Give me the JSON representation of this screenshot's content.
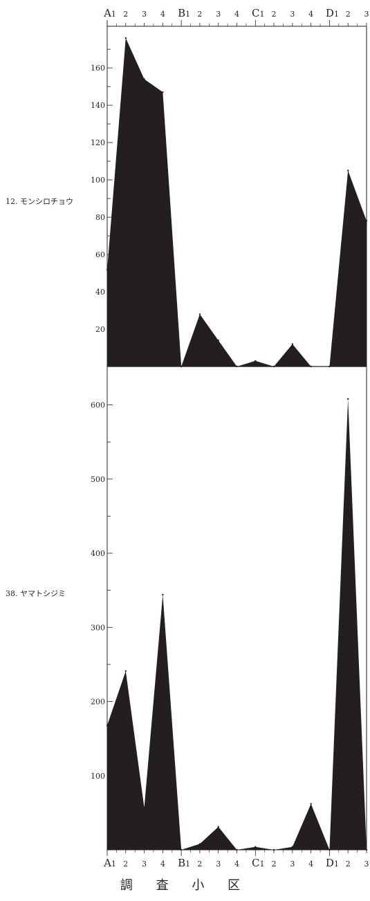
{
  "chart_data": {
    "type": "area",
    "xlabel": "調 査 小 区",
    "top_tick_labels": [
      "A1",
      "2",
      "3",
      "4",
      "B1",
      "2",
      "3",
      "4",
      "C1",
      "2",
      "3",
      "4",
      "D1",
      "2",
      "3"
    ],
    "bottom_tick_labels": [
      "A1",
      "2",
      "3",
      "4",
      "B1",
      "2",
      "3",
      "4",
      "C1",
      "2",
      "3",
      "4",
      "D1",
      "2",
      "3"
    ],
    "x": [
      "A1",
      "A2",
      "A3",
      "A4",
      "B1",
      "B2",
      "B3",
      "B4",
      "C1",
      "C2",
      "C3",
      "C4",
      "D1",
      "D2",
      "D3"
    ],
    "fill_color": "#231f20",
    "grid": false,
    "panels": [
      {
        "label": "12. モンシロチョウ",
        "values": [
          52,
          176,
          154,
          147,
          0,
          28,
          14,
          0,
          3,
          0,
          12,
          0,
          0,
          105,
          78
        ],
        "ylim": [
          0,
          180
        ],
        "yticks": [
          20,
          40,
          60,
          80,
          100,
          120,
          140,
          160
        ]
      },
      {
        "label": "38. ヤマトシジミ",
        "values": [
          168,
          241,
          57,
          344,
          0,
          8,
          31,
          0,
          4,
          0,
          4,
          62,
          0,
          608,
          0
        ],
        "ylim": [
          0,
          660
        ],
        "yticks": [
          100,
          200,
          300,
          400,
          500,
          600
        ]
      }
    ]
  }
}
